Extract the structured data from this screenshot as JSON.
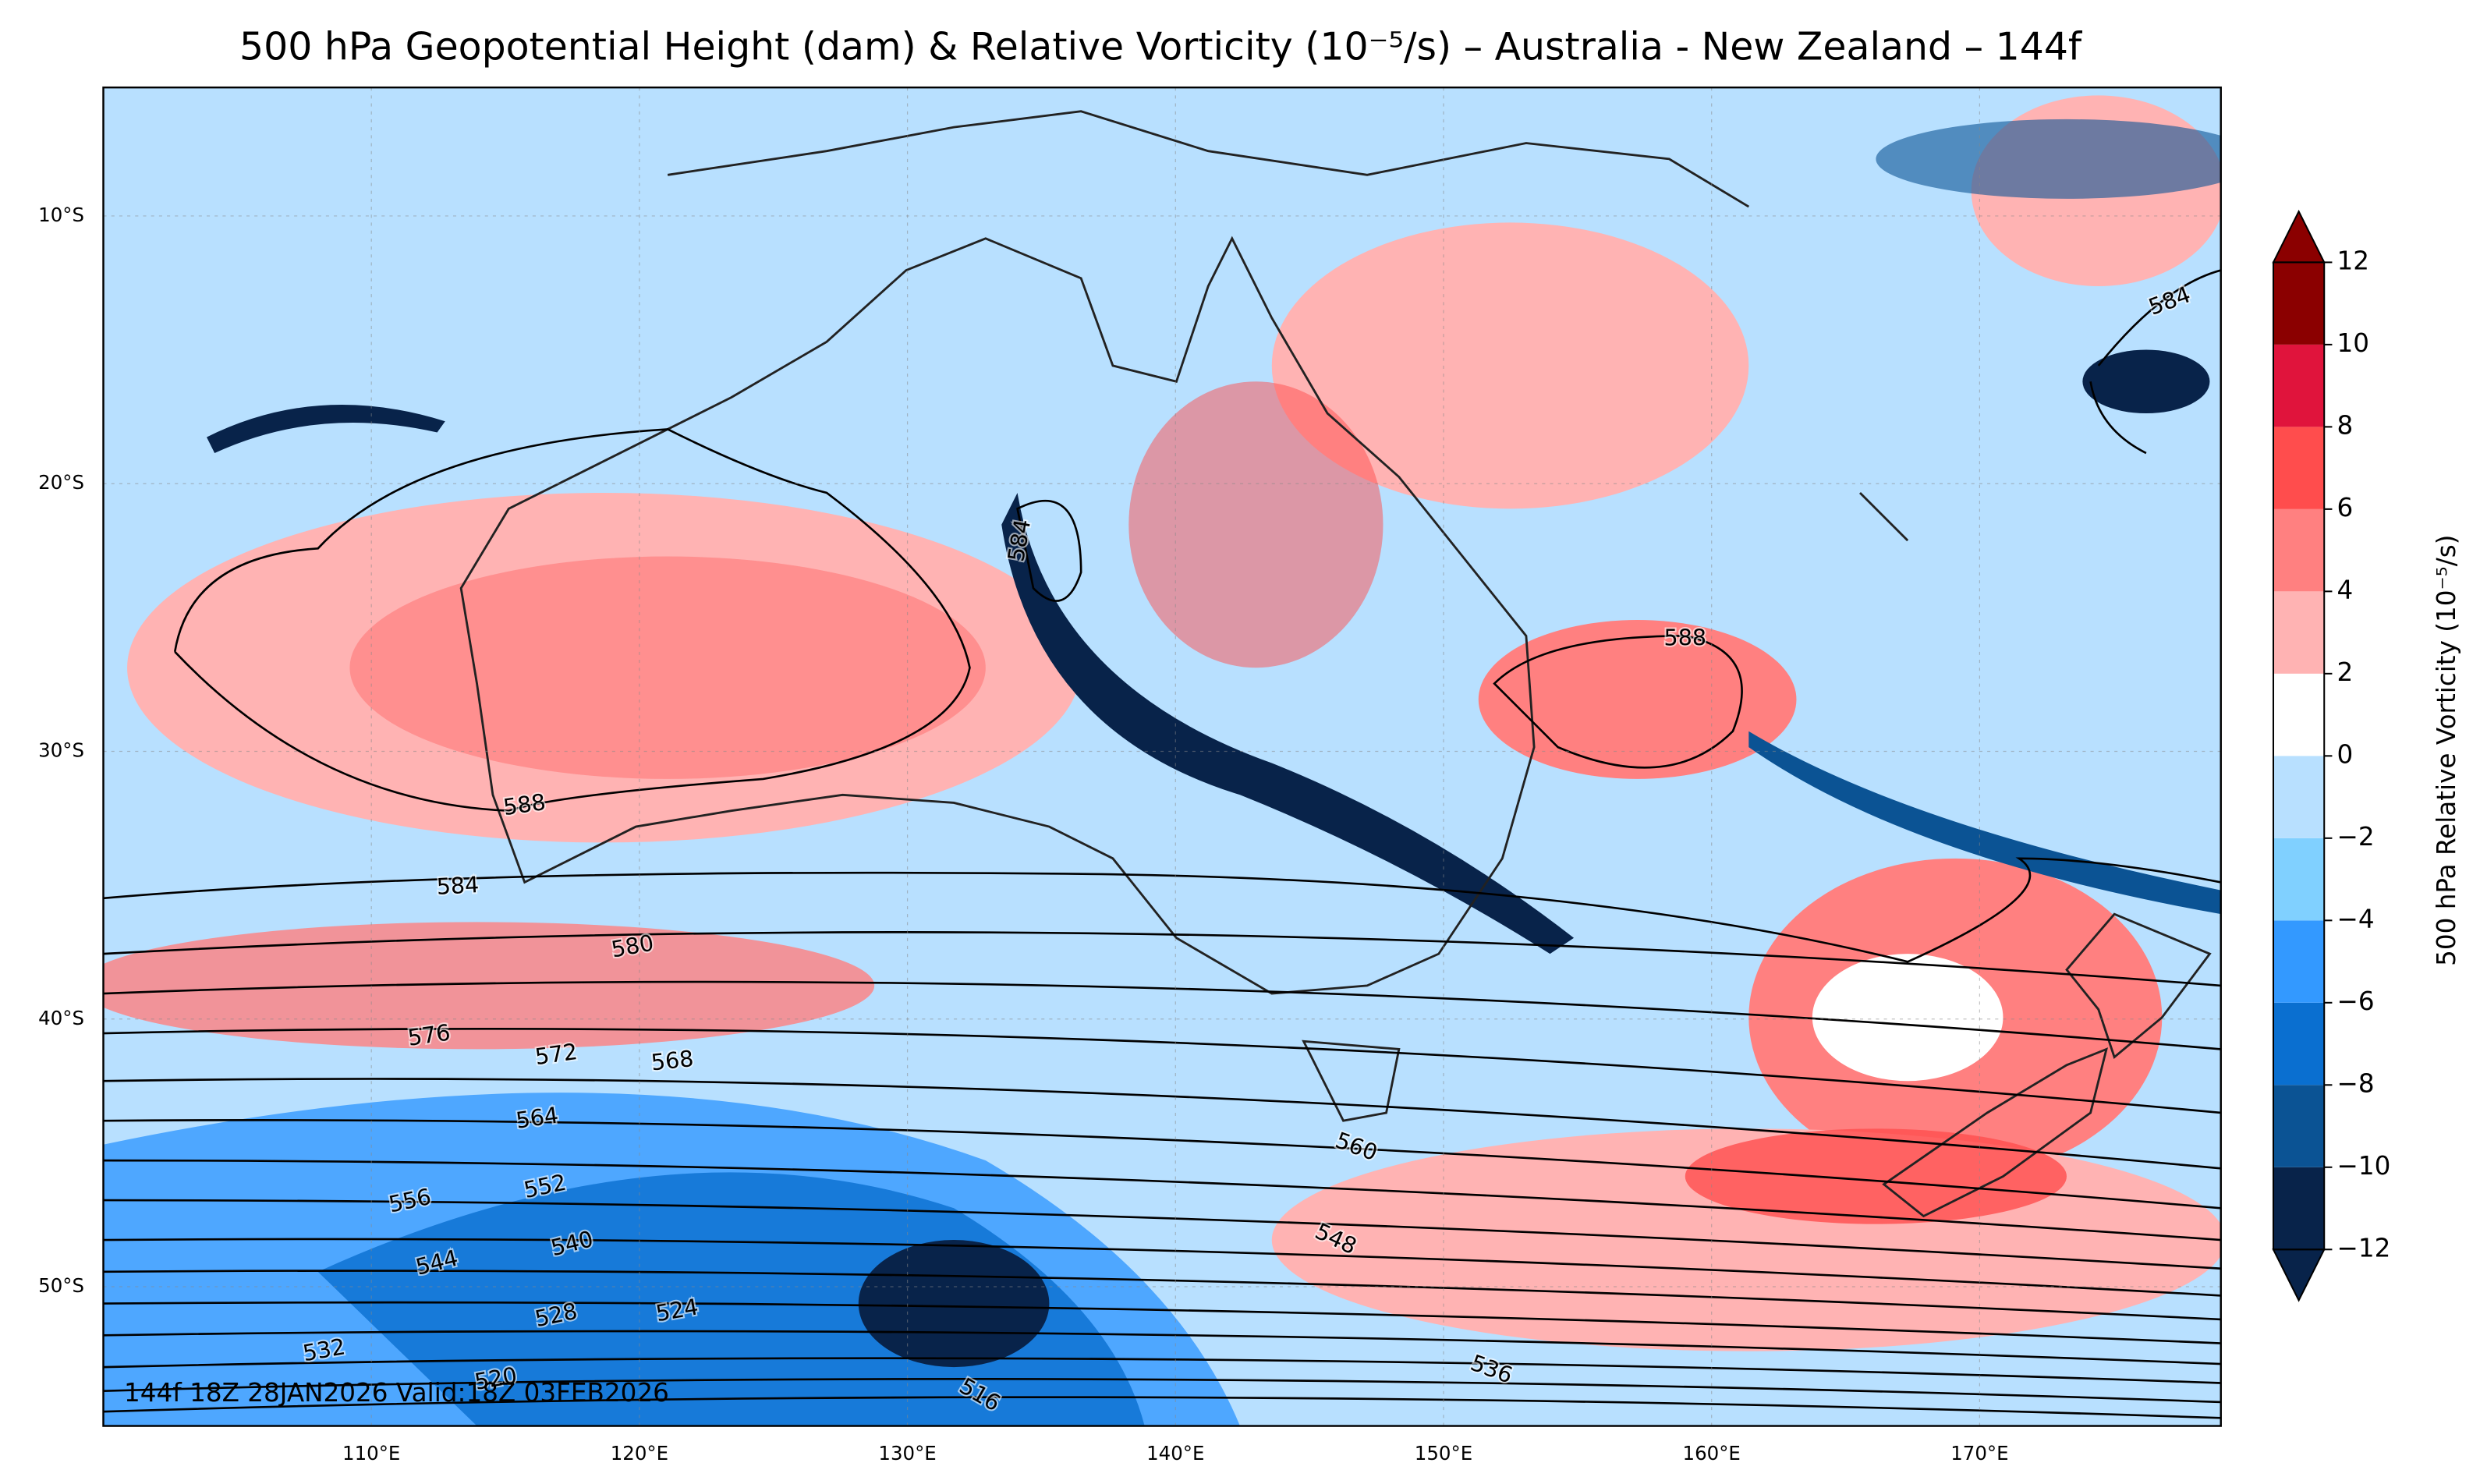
{
  "chart_data": {
    "type": "map",
    "title": "500 hPa Geopotential Height (dam) & Relative Vorticity (10⁻⁵/s) – Australia - New Zealand – 144f",
    "colorbar_label": "500 hPa Relative Vorticity (10⁻⁵/s)",
    "footer": "144f 18Z 28JAN2026 Valid:18Z 03FEB2026",
    "xlim": [
      100,
      179
    ],
    "ylim": [
      -55.2,
      -5.2
    ],
    "xticks": [
      {
        "value": 110,
        "label": "110°E"
      },
      {
        "value": 120,
        "label": "120°E"
      },
      {
        "value": 130,
        "label": "130°E"
      },
      {
        "value": 140,
        "label": "140°E"
      },
      {
        "value": 150,
        "label": "150°E"
      },
      {
        "value": 160,
        "label": "160°E"
      },
      {
        "value": 170,
        "label": "170°E"
      }
    ],
    "yticks": [
      {
        "value": -10,
        "label": "10°S"
      },
      {
        "value": -20,
        "label": "20°S"
      },
      {
        "value": -30,
        "label": "30°S"
      },
      {
        "value": -40,
        "label": "40°S"
      },
      {
        "value": -50,
        "label": "50°S"
      }
    ],
    "zlim": [
      -12,
      12
    ],
    "zticks": [
      {
        "value": -12,
        "label": "−12"
      },
      {
        "value": -10,
        "label": "−10"
      },
      {
        "value": -8,
        "label": "−8"
      },
      {
        "value": -6,
        "label": "−6"
      },
      {
        "value": -4,
        "label": "−4"
      },
      {
        "value": -2,
        "label": "−2"
      },
      0,
      2,
      4,
      6,
      8,
      10,
      12
    ],
    "colors": [
      "#08234a",
      "#0b5394",
      "#0a6fd0",
      "#3399ff",
      "#80d0ff",
      "#b8e0ff",
      "#ffffff",
      "#ffb3b3",
      "#ff8080",
      "#ff4d4d",
      "#e0143c",
      "#8b0000"
    ],
    "contour_labels": [
      588,
      584,
      584,
      588,
      584,
      580,
      576,
      572,
      568,
      564,
      560,
      556,
      552,
      548,
      544,
      540,
      536,
      532,
      528,
      524,
      520,
      516
    ]
  }
}
